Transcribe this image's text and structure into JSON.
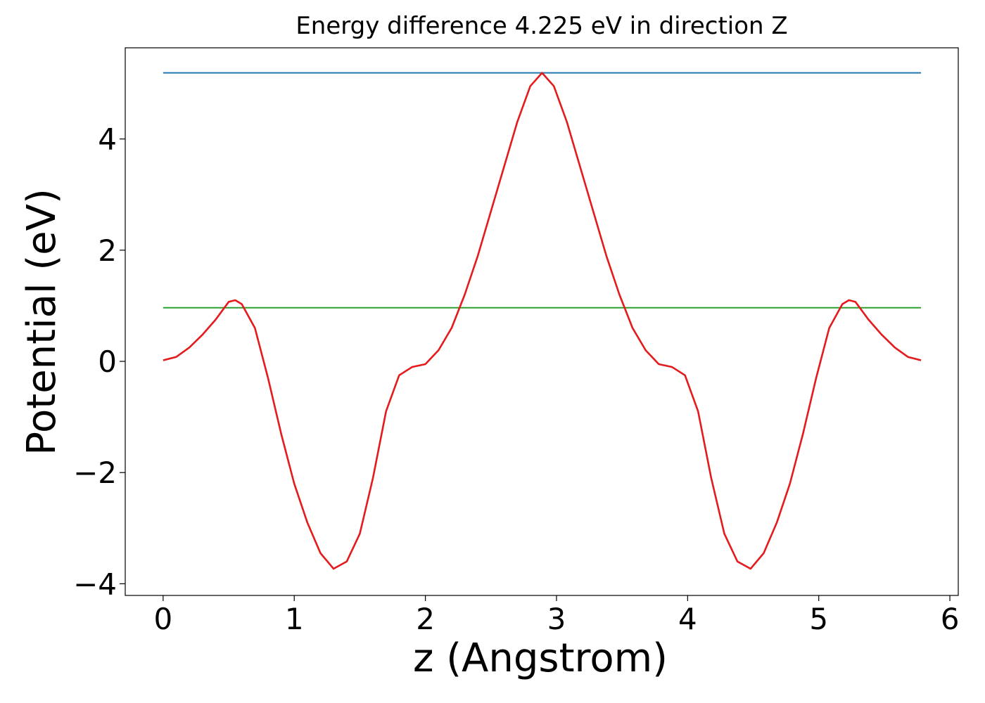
{
  "chart_data": {
    "type": "line",
    "title": "Energy difference 4.225 eV in direction Z",
    "x_label": "z (Angstrom)",
    "y_label": "Potential (eV)",
    "xlim": [
      -0.289,
      6.064
    ],
    "ylim": [
      -4.21,
      5.64
    ],
    "xticks": [
      0,
      1,
      2,
      3,
      4,
      5,
      6
    ],
    "yticks": [
      {
        "value": -4,
        "label": "−4"
      },
      {
        "value": -2,
        "label": "−2"
      },
      0,
      2,
      4
    ],
    "series": [
      {
        "color": "#1f77b4",
        "x": [
          0,
          5.78
        ],
        "values": [
          5.19,
          5.19
        ]
      },
      {
        "color": "#2ca02c",
        "x": [
          0,
          5.78
        ],
        "values": [
          0.965,
          0.965
        ]
      },
      {
        "color": "#e41a1c",
        "x": [
          0,
          0.1,
          0.2,
          0.3,
          0.4,
          0.5,
          0.55,
          0.6,
          0.7,
          0.8,
          0.9,
          1.0,
          1.1,
          1.2,
          1.3,
          1.4,
          1.5,
          1.6,
          1.7,
          1.8,
          1.9,
          2.0,
          2.1,
          2.2,
          2.3,
          2.4,
          2.5,
          2.6,
          2.7,
          2.8,
          2.89,
          2.98,
          3.08,
          3.18,
          3.28,
          3.38,
          3.48,
          3.58,
          3.68,
          3.78,
          3.88,
          3.98,
          4.08,
          4.18,
          4.28,
          4.38,
          4.48,
          4.58,
          4.68,
          4.78,
          4.88,
          4.98,
          5.08,
          5.18,
          5.23,
          5.28,
          5.38,
          5.48,
          5.58,
          5.68,
          5.78
        ],
        "values": [
          0.02,
          0.08,
          0.25,
          0.48,
          0.75,
          1.07,
          1.1,
          1.03,
          0.6,
          -0.3,
          -1.3,
          -2.2,
          -2.9,
          -3.45,
          -3.73,
          -3.6,
          -3.1,
          -2.1,
          -0.9,
          -0.25,
          -0.1,
          -0.05,
          0.2,
          0.6,
          1.2,
          1.9,
          2.7,
          3.5,
          4.3,
          4.95,
          5.19,
          4.95,
          4.3,
          3.5,
          2.7,
          1.9,
          1.2,
          0.6,
          0.2,
          -0.05,
          -0.1,
          -0.25,
          -0.9,
          -2.1,
          -3.1,
          -3.6,
          -3.73,
          -3.45,
          -2.9,
          -2.2,
          -1.3,
          -0.3,
          0.6,
          1.03,
          1.1,
          1.07,
          0.75,
          0.48,
          0.25,
          0.08,
          0.02
        ]
      }
    ]
  }
}
